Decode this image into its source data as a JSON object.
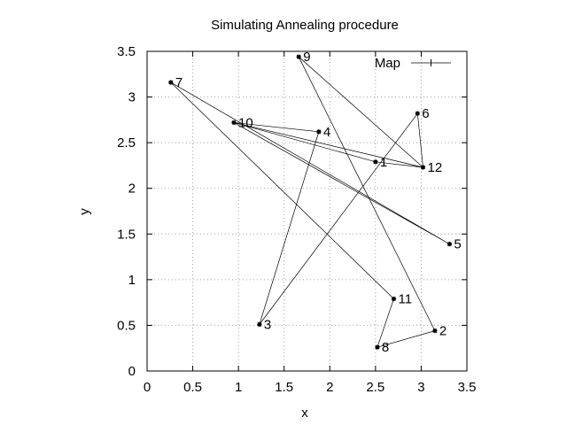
{
  "chart_data": {
    "type": "line",
    "title": "Simulating Annealing procedure",
    "xlabel": "x",
    "ylabel": "y",
    "xlim": [
      0,
      3.5
    ],
    "ylim": [
      0,
      3.5
    ],
    "xticks": [
      "0",
      "0.5",
      "1",
      "1.5",
      "2",
      "2.5",
      "3",
      "3.5"
    ],
    "yticks": [
      "0",
      "0.5",
      "1",
      "1.5",
      "2",
      "2.5",
      "3",
      "3.5"
    ],
    "grid": true,
    "legend_position": "top-right",
    "series": [
      {
        "name": "Map",
        "marker": "star",
        "points": [
          {
            "label": "1",
            "x": 2.5,
            "y": 2.29
          },
          {
            "label": "12",
            "x": 3.02,
            "y": 2.23
          },
          {
            "label": "9",
            "x": 1.66,
            "y": 3.44
          },
          {
            "label": "2",
            "x": 3.15,
            "y": 0.44
          },
          {
            "label": "8",
            "x": 2.52,
            "y": 0.26
          },
          {
            "label": "11",
            "x": 2.7,
            "y": 0.79
          },
          {
            "label": "7",
            "x": 0.26,
            "y": 3.16
          },
          {
            "label": "5",
            "x": 3.31,
            "y": 1.39
          },
          {
            "label": "10",
            "x": 0.95,
            "y": 2.72
          },
          {
            "label": "4",
            "x": 1.88,
            "y": 2.62
          },
          {
            "label": "3",
            "x": 1.23,
            "y": 0.51
          },
          {
            "label": "6",
            "x": 2.96,
            "y": 2.82
          },
          {
            "label": "12",
            "x": 3.02,
            "y": 2.23
          },
          {
            "label": "10",
            "x": 0.95,
            "y": 2.72
          },
          {
            "label": "1",
            "x": 2.5,
            "y": 2.29
          }
        ]
      }
    ]
  }
}
